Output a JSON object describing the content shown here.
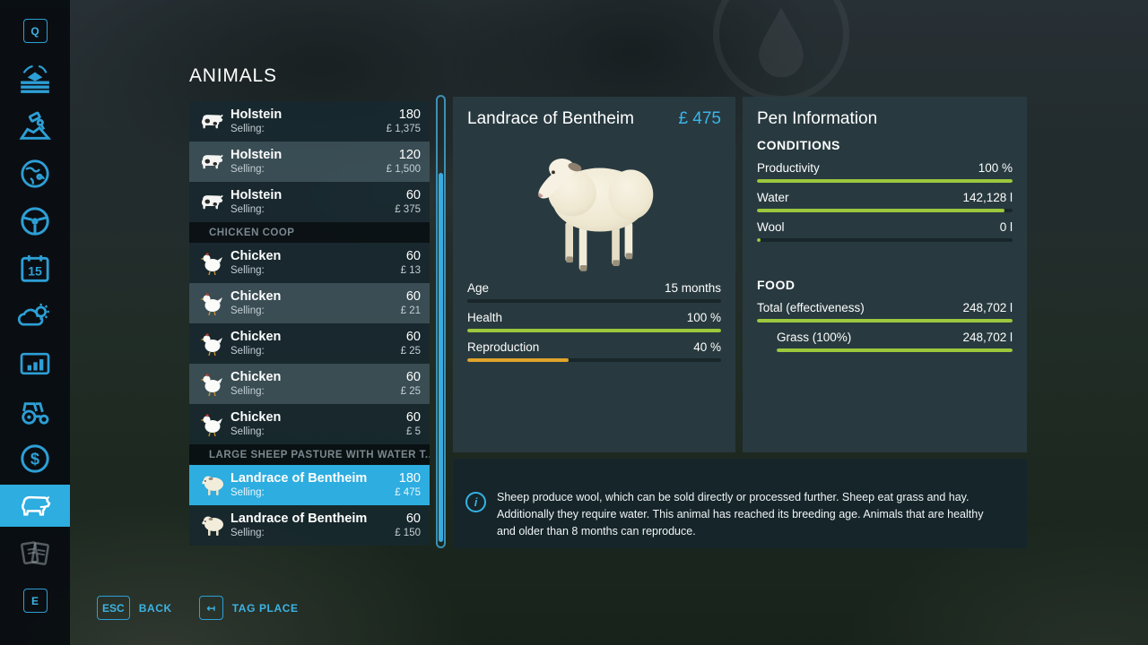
{
  "colors": {
    "accent": "#2dade0",
    "green": "#9cc83d",
    "orange": "#e0a42c"
  },
  "page_title": "ANIMALS",
  "sidebar": {
    "items": [
      {
        "icon": "hotkey-q",
        "key": "Q"
      },
      {
        "icon": "field-finance"
      },
      {
        "icon": "landscaping"
      },
      {
        "icon": "world-map"
      },
      {
        "icon": "driving"
      },
      {
        "icon": "calendar",
        "day": "15"
      },
      {
        "icon": "weather"
      },
      {
        "icon": "statistics"
      },
      {
        "icon": "vehicles"
      },
      {
        "icon": "finances"
      },
      {
        "icon": "animals",
        "active": true
      },
      {
        "icon": "contracts",
        "disabled": true
      },
      {
        "icon": "hotkey-e",
        "key": "E"
      }
    ]
  },
  "animal_list": [
    {
      "kind": "row",
      "icon": "cow",
      "name": "Holstein",
      "count": "180",
      "selling_label": "Selling:",
      "price": "£ 1,375",
      "variant": "dark"
    },
    {
      "kind": "row",
      "icon": "cow",
      "name": "Holstein",
      "count": "120",
      "selling_label": "Selling:",
      "price": "£ 1,500",
      "variant": "light"
    },
    {
      "kind": "row",
      "icon": "cow",
      "name": "Holstein",
      "count": "60",
      "selling_label": "Selling:",
      "price": "£ 375",
      "variant": "dark"
    },
    {
      "kind": "header",
      "label": "CHICKEN COOP"
    },
    {
      "kind": "row",
      "icon": "chicken",
      "name": "Chicken",
      "count": "60",
      "selling_label": "Selling:",
      "price": "£ 13",
      "variant": "dark"
    },
    {
      "kind": "row",
      "icon": "chicken",
      "name": "Chicken",
      "count": "60",
      "selling_label": "Selling:",
      "price": "£ 21",
      "variant": "light"
    },
    {
      "kind": "row",
      "icon": "chicken",
      "name": "Chicken",
      "count": "60",
      "selling_label": "Selling:",
      "price": "£ 25",
      "variant": "dark"
    },
    {
      "kind": "row",
      "icon": "chicken",
      "name": "Chicken",
      "count": "60",
      "selling_label": "Selling:",
      "price": "£ 25",
      "variant": "light"
    },
    {
      "kind": "row",
      "icon": "chicken",
      "name": "Chicken",
      "count": "60",
      "selling_label": "Selling:",
      "price": "£ 5",
      "variant": "dark"
    },
    {
      "kind": "header",
      "label": "LARGE SHEEP PASTURE WITH WATER T.."
    },
    {
      "kind": "row",
      "icon": "sheep",
      "name": "Landrace of Bentheim",
      "count": "180",
      "selling_label": "Selling:",
      "price": "£ 475",
      "variant": "selected"
    },
    {
      "kind": "row",
      "icon": "sheep",
      "name": "Landrace of Bentheim",
      "count": "60",
      "selling_label": "Selling:",
      "price": "£ 150",
      "variant": "dark"
    }
  ],
  "detail": {
    "title": "Landrace of Bentheim",
    "price": "£ 475",
    "stats": [
      {
        "label": "Age",
        "value": "15 months",
        "fill": 0,
        "color": "none"
      },
      {
        "label": "Health",
        "value": "100 %",
        "fill": 100,
        "color": "green"
      },
      {
        "label": "Reproduction",
        "value": "40 %",
        "fill": 40,
        "color": "orange"
      }
    ]
  },
  "pen": {
    "title": "Pen Information",
    "sections": [
      {
        "header": "CONDITIONS",
        "rows": [
          {
            "label": "Productivity",
            "value": "100 %",
            "fill": 100,
            "color": "green",
            "indent": false
          },
          {
            "label": "Water",
            "value": "142,128 l",
            "fill": 97,
            "color": "green",
            "indent": false
          },
          {
            "label": "Wool",
            "value": "0 l",
            "fill": 1.5,
            "color": "green",
            "indent": false
          }
        ]
      },
      {
        "header": "FOOD",
        "rows": [
          {
            "label": "Total (effectiveness)",
            "value": "248,702 l",
            "fill": 100,
            "color": "green",
            "indent": false
          },
          {
            "label": "Grass (100%)",
            "value": "248,702 l",
            "fill": 100,
            "color": "green",
            "indent": true
          }
        ]
      }
    ]
  },
  "info_box": {
    "text": "Sheep produce wool, which can be sold directly or processed further. Sheep eat grass and hay. Additionally they require water. This animal has reached its breeding age. Animals that are healthy and older than 8 months can reproduce."
  },
  "footer": {
    "shortcuts": [
      {
        "key": "ESC",
        "label": "BACK"
      },
      {
        "key": "↤",
        "label": "TAG PLACE"
      }
    ]
  },
  "scrollbar": {
    "thumb_start": 17,
    "thumb_end": 99
  }
}
